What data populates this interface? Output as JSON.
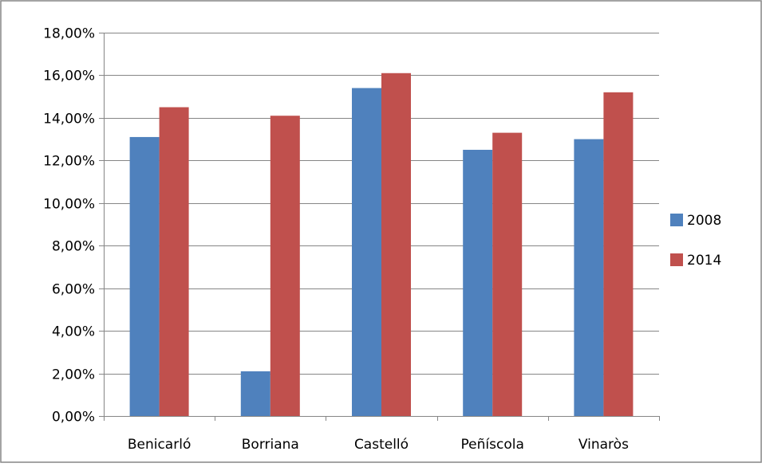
{
  "chart_data": {
    "type": "bar",
    "categories": [
      "Benicarló",
      "Borriana",
      "Castelló",
      "Peñíscola",
      "Vinaròs"
    ],
    "series": [
      {
        "name": "2008",
        "values": [
          13.1,
          2.1,
          15.4,
          12.5,
          13.0
        ],
        "color": "#4F81BD"
      },
      {
        "name": "2014",
        "values": [
          14.5,
          14.1,
          16.1,
          13.3,
          15.2
        ],
        "color": "#C0504D"
      }
    ],
    "y_ticks": [
      "0,00%",
      "2,00%",
      "4,00%",
      "6,00%",
      "8,00%",
      "10,00%",
      "12,00%",
      "14,00%",
      "16,00%",
      "18,00%"
    ],
    "ylim": [
      0,
      18
    ],
    "y_unit": "%",
    "grid": true,
    "legend_position": "right",
    "title": "",
    "xlabel": "",
    "ylabel": ""
  }
}
